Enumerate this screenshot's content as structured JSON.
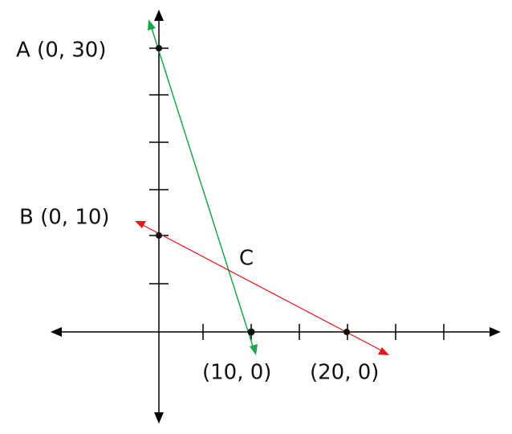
{
  "labels": {
    "a": "A (0, 30)",
    "b": "B (0, 10)",
    "c": "C",
    "x10": "(10, 0)",
    "x20": "(20, 0)"
  }
}
